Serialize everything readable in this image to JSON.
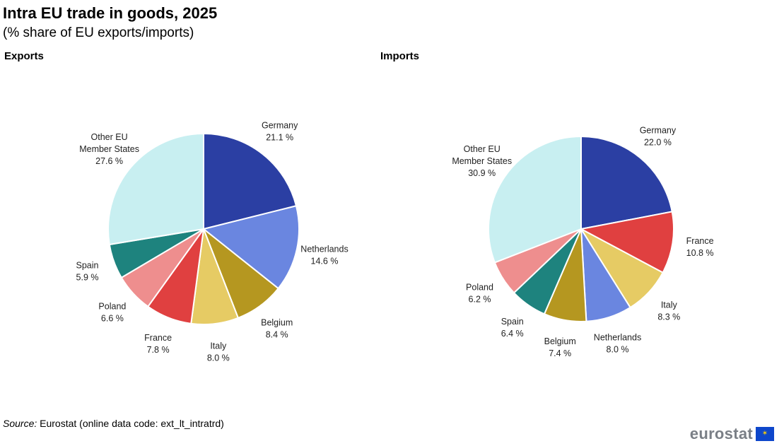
{
  "title": "Intra EU trade in goods, 2025",
  "subtitle": "(% share of EU exports/imports)",
  "source": {
    "label": "Source:",
    "text": "Eurostat (online data code: ext_lt_intratrd)"
  },
  "logo": {
    "text": "eurostat",
    "icon": "eu-flag-icon"
  },
  "chart_data": [
    {
      "type": "pie",
      "title": "Exports",
      "slices": [
        {
          "name": "Germany",
          "value": 21.1,
          "value_label": "21.1 %",
          "color": "#2b3fa3"
        },
        {
          "name": "Netherlands",
          "value": 14.6,
          "value_label": "14.6 %",
          "color": "#6a86e0"
        },
        {
          "name": "Belgium",
          "value": 8.4,
          "value_label": "8.4 %",
          "color": "#b59720"
        },
        {
          "name": "Italy",
          "value": 8.0,
          "value_label": "8.0 %",
          "color": "#e6cb64"
        },
        {
          "name": "France",
          "value": 7.8,
          "value_label": "7.8 %",
          "color": "#e04040"
        },
        {
          "name": "Poland",
          "value": 6.6,
          "value_label": "6.6 %",
          "color": "#ee8e8e"
        },
        {
          "name": "Spain",
          "value": 5.9,
          "value_label": "5.9 %",
          "color": "#1e837e"
        },
        {
          "name": "Other EU Member States",
          "label_lines": [
            "Other EU",
            "Member States"
          ],
          "value": 27.6,
          "value_label": "27.6 %",
          "color": "#c8eff1"
        }
      ]
    },
    {
      "type": "pie",
      "title": "Imports",
      "slices": [
        {
          "name": "Germany",
          "value": 22.0,
          "value_label": "22.0 %",
          "color": "#2b3fa3"
        },
        {
          "name": "France",
          "value": 10.8,
          "value_label": "10.8 %",
          "color": "#e04040"
        },
        {
          "name": "Italy",
          "value": 8.3,
          "value_label": "8.3 %",
          "color": "#e6cb64"
        },
        {
          "name": "Netherlands",
          "value": 8.0,
          "value_label": "8.0 %",
          "color": "#6a86e0"
        },
        {
          "name": "Belgium",
          "value": 7.4,
          "value_label": "7.4 %",
          "color": "#b59720"
        },
        {
          "name": "Spain",
          "value": 6.4,
          "value_label": "6.4 %",
          "color": "#1e837e"
        },
        {
          "name": "Poland",
          "value": 6.2,
          "value_label": "6.2 %",
          "color": "#ee8e8e"
        },
        {
          "name": "Other EU Member States",
          "label_lines": [
            "Other EU",
            "Member States"
          ],
          "value": 30.9,
          "value_label": "30.9 %",
          "color": "#c8eff1"
        }
      ]
    }
  ]
}
